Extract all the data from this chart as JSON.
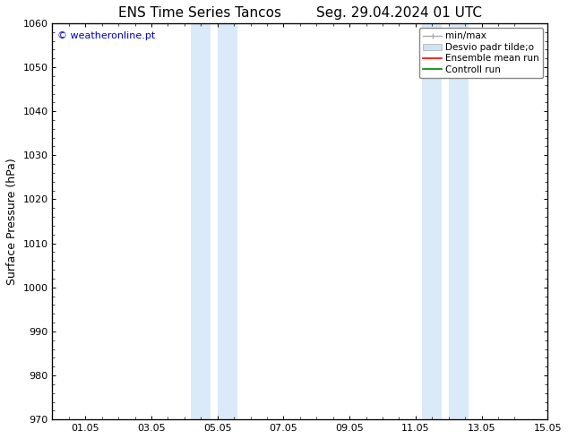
{
  "title_left": "ENS Time Series Tancos",
  "title_right": "Seg. 29.04.2024 01 UTC",
  "ylabel": "Surface Pressure (hPa)",
  "ylim": [
    970,
    1060
  ],
  "yticks": [
    970,
    980,
    990,
    1000,
    1010,
    1020,
    1030,
    1040,
    1050,
    1060
  ],
  "xlim": [
    0,
    14
  ],
  "xticks": [
    1,
    3,
    5,
    7,
    9,
    11,
    13,
    15
  ],
  "xticklabels": [
    "01.05",
    "03.05",
    "05.05",
    "07.05",
    "09.05",
    "11.05",
    "13.05",
    "15.05"
  ],
  "watermark": "© weatheronline.pt",
  "watermark_color": "#0000cc",
  "bg_color": "#ffffff",
  "plot_bg_color": "#ffffff",
  "shaded_regions": [
    {
      "xmin": 4.2,
      "xmax": 4.8,
      "color": "#daeaf8"
    },
    {
      "xmin": 5.0,
      "xmax": 5.6,
      "color": "#daeaf8"
    },
    {
      "xmin": 11.2,
      "xmax": 11.8,
      "color": "#daeaf8"
    },
    {
      "xmin": 12.0,
      "xmax": 12.6,
      "color": "#daeaf8"
    }
  ],
  "legend_labels": [
    "min/max",
    "Desvio padr tilde;o",
    "Ensemble mean run",
    "Controll run"
  ],
  "legend_colors": [
    "#aaaaaa",
    "#cce4f5",
    "#ff0000",
    "#008000"
  ],
  "title_fontsize": 11,
  "tick_fontsize": 8,
  "label_fontsize": 9,
  "watermark_fontsize": 8
}
